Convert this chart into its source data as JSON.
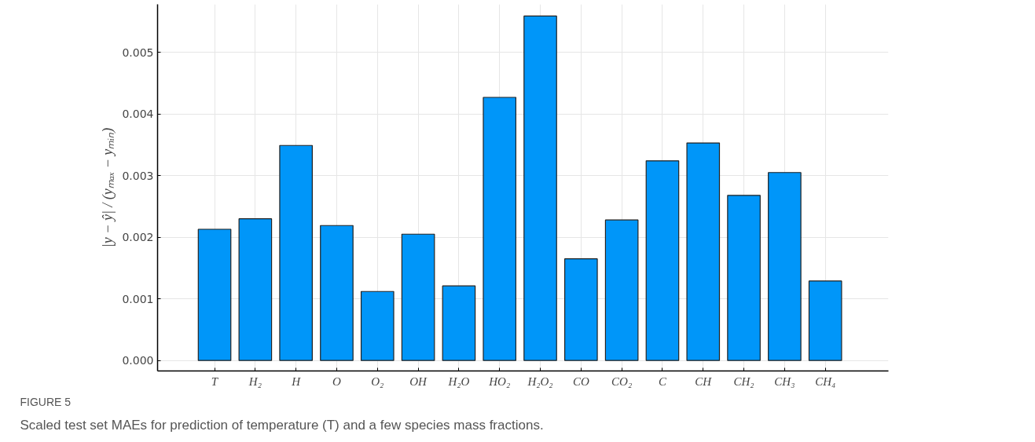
{
  "chart_data": {
    "type": "bar",
    "categories": [
      "T",
      "H₂",
      "H",
      "O",
      "O₂",
      "OH",
      "H₂O",
      "HO₂",
      "H₂O₂",
      "CO",
      "CO₂",
      "C",
      "CH",
      "CH₂",
      "CH₃",
      "CH₄"
    ],
    "values": [
      0.00213,
      0.0023,
      0.00349,
      0.00219,
      0.00112,
      0.00205,
      0.00121,
      0.00427,
      0.00559,
      0.00165,
      0.00228,
      0.00324,
      0.00353,
      0.00268,
      0.00305,
      0.00129
    ],
    "color": "#0096f9",
    "ylabel": "|y − ŷ| / (yₘₐₓ − yₘᵢₙ)",
    "ylim": [
      -0.00017,
      0.00578
    ],
    "yticks": [
      {
        "value": 0,
        "label": "0.000"
      },
      {
        "value": 0.001,
        "label": "0.001"
      },
      {
        "value": 0.002,
        "label": "0.002"
      },
      {
        "value": 0.003,
        "label": "0.003"
      },
      {
        "value": 0.004,
        "label": "0.004"
      },
      {
        "value": 0.005,
        "label": "0.005"
      }
    ],
    "grid": true,
    "annotations": [
      "FIGURE 5",
      "Scaled test set MAEs for prediction of temperature (T) and a few species mass fractions."
    ]
  }
}
